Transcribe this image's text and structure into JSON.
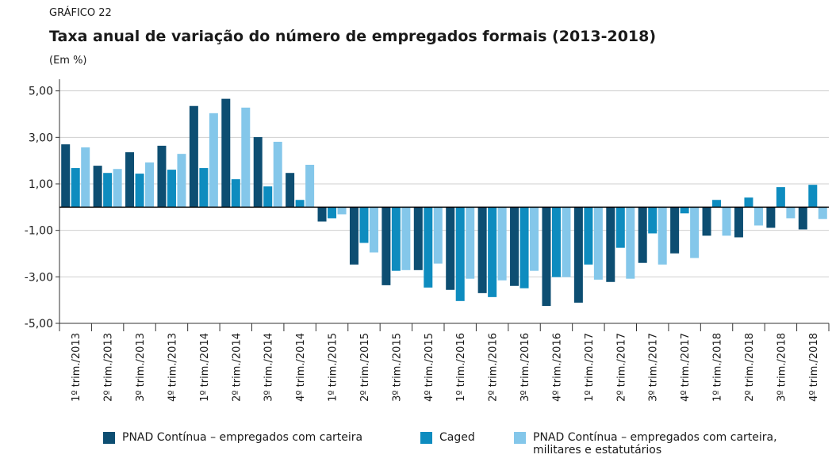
{
  "chart_data": {
    "type": "bar",
    "label": "GRÁFICO 22",
    "title": "Taxa anual de variação do número de empregados formais (2013-2018)",
    "subtitle": "(Em %)",
    "categories": [
      "1º trim./2013",
      "2º trim./2013",
      "3º trim./2013",
      "4º trim./2013",
      "1º trim./2014",
      "2º trim./2014",
      "3º trim./2014",
      "4º trim./2014",
      "1º trim./2015",
      "2º trim./2015",
      "3º trim./2015",
      "4º trim./2015",
      "1º trim./2016",
      "2º trim./2016",
      "3º trim./2016",
      "4º trim./2016",
      "1º trim./2017",
      "2º trim./2017",
      "3º trim./2017",
      "4º trim./2017",
      "1º trim./2018",
      "2º trim./2018",
      "3º trim./2018",
      "4º trim./2018"
    ],
    "series": [
      {
        "name": "PNAD Contínua  – empregados com carteira",
        "color": "#0d4e72",
        "values": [
          2.7,
          1.78,
          2.36,
          2.64,
          4.35,
          4.66,
          3.01,
          1.47,
          -0.62,
          -2.47,
          -3.36,
          -2.71,
          -3.56,
          -3.7,
          -3.39,
          -4.25,
          -4.11,
          -3.22,
          -2.4,
          -1.99,
          -1.23,
          -1.3,
          -0.89,
          -0.96
        ]
      },
      {
        "name": "Caged",
        "color": "#0e8cbf",
        "values": [
          1.68,
          1.47,
          1.44,
          1.61,
          1.68,
          1.2,
          0.89,
          0.31,
          -0.48,
          -1.54,
          -2.74,
          -3.46,
          -4.04,
          -3.87,
          -3.49,
          -3.01,
          -2.47,
          -1.75,
          -1.13,
          -0.27,
          0.31,
          0.41,
          0.86,
          0.96
        ]
      },
      {
        "name": "PNAD Contínua – empregados com carteira, militares e estatutários",
        "color": "#84c7ea",
        "values": [
          2.57,
          1.64,
          1.92,
          2.29,
          4.04,
          4.28,
          2.81,
          1.82,
          -0.31,
          -1.95,
          -2.71,
          -2.43,
          -3.08,
          -3.15,
          -2.74,
          -3.01,
          -3.12,
          -3.08,
          -2.47,
          -2.19,
          -1.23,
          -0.79,
          -0.48,
          -0.51
        ]
      }
    ],
    "ylim": [
      -5,
      5.5
    ],
    "yticks": [
      {
        "value": -5,
        "label": "-5,00"
      },
      {
        "value": -3,
        "label": "-3,00"
      },
      {
        "value": -1,
        "label": "-1,00"
      },
      {
        "value": 1,
        "label": "1,00"
      },
      {
        "value": 3,
        "label": "3,00"
      },
      {
        "value": 5,
        "label": "5,00"
      }
    ],
    "grid": true
  }
}
